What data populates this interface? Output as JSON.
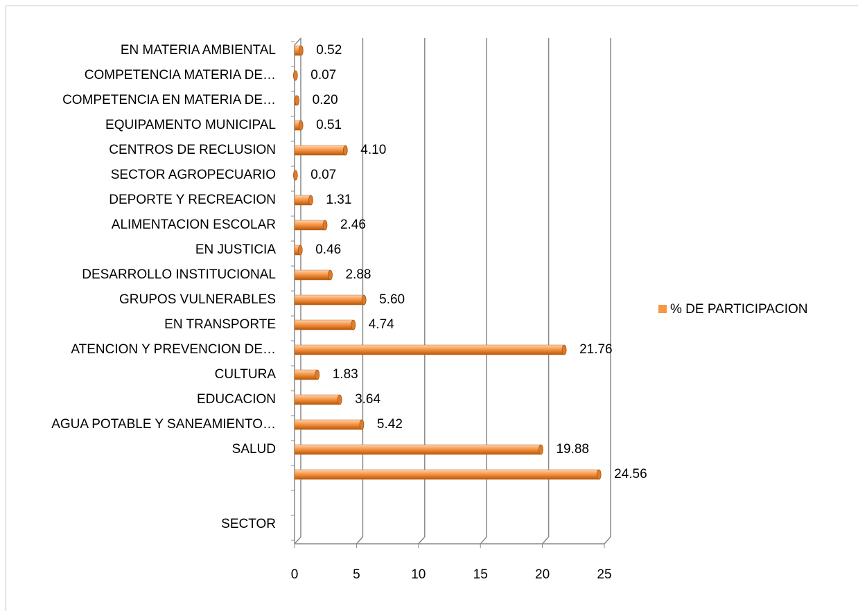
{
  "chart_data": {
    "type": "bar",
    "orientation": "horizontal",
    "categories": [
      "SECTOR",
      null,
      null,
      "SALUD",
      "AGUA POTABLE Y SANEAMIENTO…",
      "EDUCACION",
      "CULTURA",
      "ATENCION Y PREVENCION DE…",
      "EN TRANSPORTE",
      "GRUPOS VULNERABLES",
      "DESARROLLO INSTITUCIONAL",
      "EN JUSTICIA",
      "ALIMENTACION ESCOLAR",
      "DEPORTE Y RECREACION",
      "SECTOR AGROPECUARIO",
      "CENTROS DE RECLUSION",
      "EQUIPAMENTO MUNICIPAL",
      "COMPETENCIA EN MATERIA DE…",
      "COMPETENCIA MATERIA DE…",
      "EN MATERIA AMBIENTAL"
    ],
    "series": [
      {
        "name": "% DE PARTICIPACION",
        "color": "#f79646",
        "values": [
          null,
          null,
          24.56,
          19.88,
          5.42,
          3.64,
          1.83,
          21.76,
          4.74,
          5.6,
          2.88,
          0.46,
          2.46,
          1.31,
          0.07,
          4.1,
          0.51,
          0.2,
          0.07,
          0.52
        ],
        "value_labels": [
          null,
          null,
          "24.56",
          "19.88",
          "5.42",
          "3.64",
          "1.83",
          "21.76",
          "4.74",
          "5.60",
          "2.88",
          "0.46",
          "2.46",
          "1.31",
          "0.07",
          "4.10",
          "0.51",
          "0.20",
          "0.07",
          "0.52"
        ]
      }
    ],
    "xlim": [
      0,
      25
    ],
    "xticks": [
      0,
      5,
      10,
      15,
      20,
      25
    ],
    "grid": true,
    "legend": "right"
  }
}
